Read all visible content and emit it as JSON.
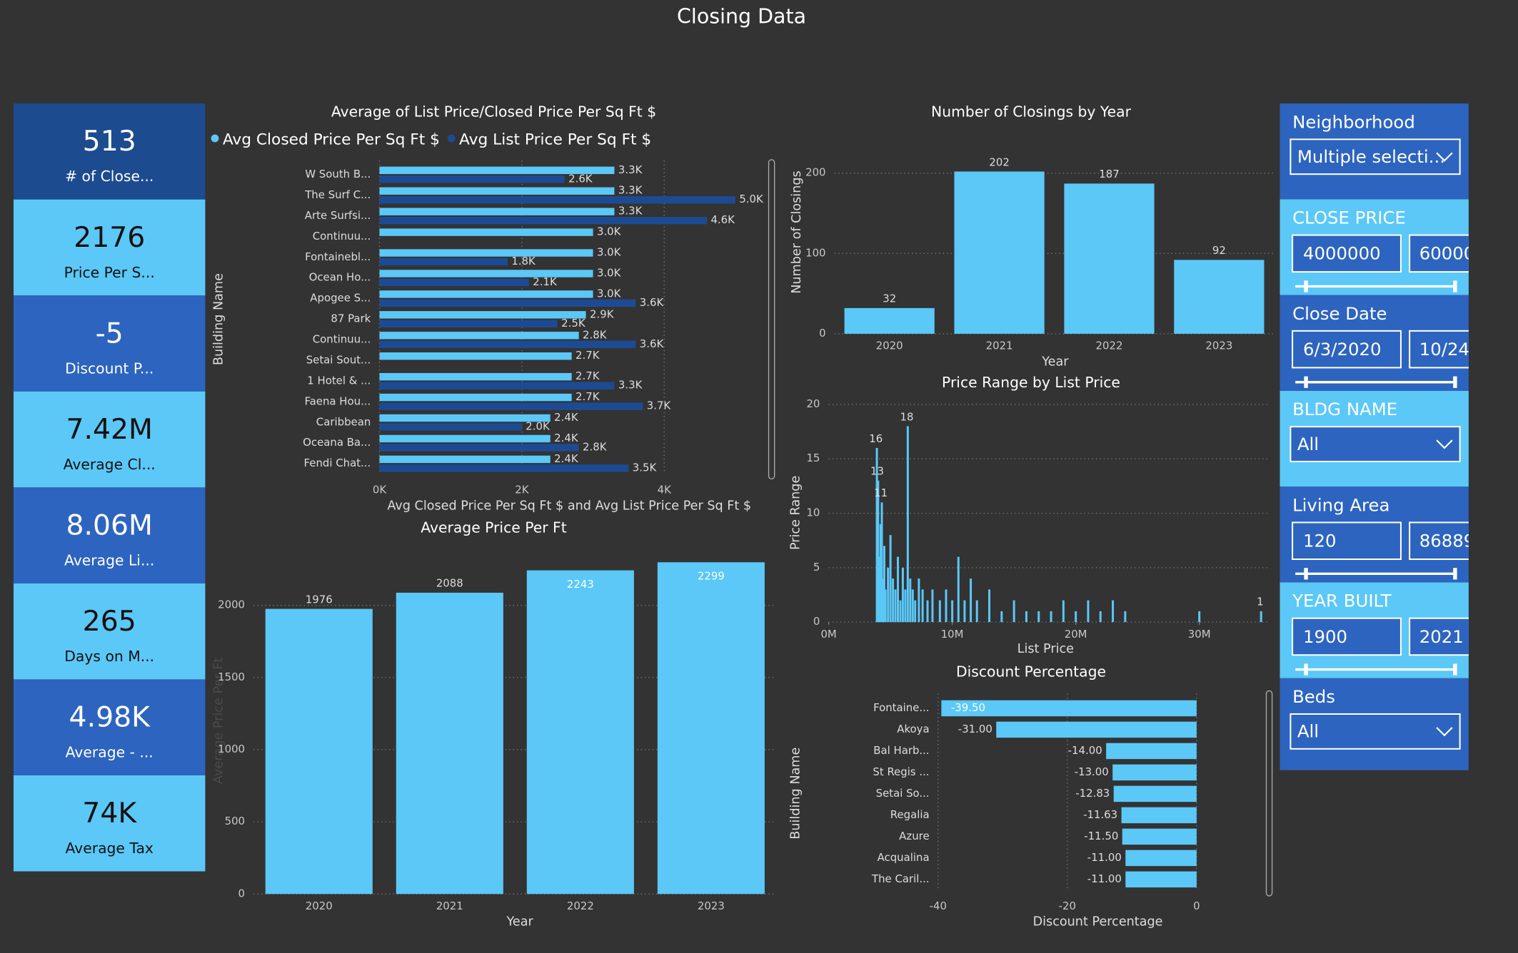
{
  "title": "Closing Data",
  "cards": [
    {
      "value": "513",
      "label": "# of Close..."
    },
    {
      "value": "2176",
      "label": "Price Per S..."
    },
    {
      "value": "-5",
      "label": "Discount P..."
    },
    {
      "value": "7.42M",
      "label": "Average Cl..."
    },
    {
      "value": "8.06M",
      "label": "Average Li..."
    },
    {
      "value": "265",
      "label": "Days on M..."
    },
    {
      "value": "4.98K",
      "label": "Average - ..."
    },
    {
      "value": "74K",
      "label": "Average Tax"
    }
  ],
  "slicers": [
    {
      "title": "Neighborhood",
      "value": "Multiple selecti..."
    },
    {
      "title": "CLOSE PRICE",
      "min": "4000000",
      "max": "60000"
    },
    {
      "title": "Close Date",
      "min": "6/3/2020",
      "max": "10/24"
    },
    {
      "title": "BLDG NAME",
      "value": "All"
    },
    {
      "title": "Living Area",
      "min": "120",
      "max": "86889"
    },
    {
      "title": "YEAR BUILT",
      "min": "1900",
      "max": "2021"
    },
    {
      "title": "Beds",
      "value": "All"
    }
  ],
  "chart_data": [
    {
      "type": "barh",
      "title": "Average of List Price/Closed Price Per Sq Ft $",
      "x_label": "Avg Closed Price Per Sq Ft $ and Avg List Price Per Sq Ft $",
      "y_label": "Building Name",
      "categories": [
        "W South B...",
        "The Surf C...",
        "Arte Surfsi...",
        "Continuu...",
        "Fontainebl...",
        "Ocean Ho...",
        "Apogee S...",
        "87 Park",
        "Continuu...",
        "Setai Sout...",
        "1 Hotel & ...",
        "Faena Hou...",
        "Caribbean",
        "Oceana Ba...",
        "Fendi Chat..."
      ],
      "series": [
        {
          "name": "Avg Closed Price Per Sq Ft $",
          "color": "#5bc8f7",
          "values": [
            3300,
            3300,
            3300,
            3000,
            3000,
            3000,
            3000,
            2900,
            2800,
            2700,
            2700,
            2700,
            2400,
            2400,
            2400
          ],
          "value_labels": [
            "3.3K",
            "3.3K",
            "3.3K",
            "3.0K",
            "3.0K",
            "3.0K",
            "3.0K",
            "2.9K",
            "2.8K",
            "2.7K",
            "2.7K",
            "2.7K",
            "2.4K",
            "2.4K",
            "2.4K"
          ]
        },
        {
          "name": "Avg List Price Per Sq Ft $",
          "color": "#1d4b93",
          "values": [
            2600,
            5000,
            4600,
            null,
            1800,
            2100,
            3600,
            2500,
            3600,
            null,
            3300,
            3700,
            2000,
            2800,
            3500
          ],
          "value_labels": [
            "2.6K",
            "5.0K",
            "4.6K",
            null,
            "1.8K",
            "2.1K",
            "3.6K",
            "2.5K",
            "3.6K",
            null,
            "3.3K",
            "3.7K",
            "2.0K",
            "2.8K",
            "3.5K"
          ]
        }
      ],
      "xlim": [
        0,
        5400
      ],
      "xticks": [
        {
          "value": 0,
          "label": "0K"
        },
        {
          "value": 2000,
          "label": "2K"
        },
        {
          "value": 4000,
          "label": "4K"
        }
      ],
      "grid": true
    },
    {
      "type": "bar",
      "title": "Number of Closings by Year",
      "x_label": "Year",
      "y_label": "Number of Closings",
      "categories": [
        "2020",
        "2021",
        "2022",
        "2023"
      ],
      "values": [
        32,
        202,
        187,
        92
      ],
      "color": "#5bc8f7",
      "ylim": [
        0,
        215
      ],
      "yticks": [
        0,
        100,
        200
      ],
      "grid": true,
      "data_labels": true
    },
    {
      "type": "bar",
      "title": "Price Range by List Price",
      "x_label": "List Price",
      "y_label": "Price Range",
      "x": [
        3900000,
        4000000,
        4100000,
        4200000,
        4300000,
        4400000,
        4500000,
        4600000,
        4800000,
        5000000,
        5200000,
        5400000,
        5600000,
        5800000,
        6000000,
        6200000,
        6400000,
        6600000,
        6800000,
        7000000,
        7300000,
        7600000,
        8000000,
        8400000,
        9000000,
        9500000,
        10000000,
        10500000,
        11000000,
        11500000,
        12000000,
        13000000,
        14000000,
        15000000,
        16000000,
        17000000,
        18000000,
        19000000,
        20000000,
        21000000,
        22000000,
        23000000,
        24000000,
        30000000,
        35000000
      ],
      "values": [
        16,
        13,
        6,
        9,
        11,
        4,
        7,
        3,
        5,
        8,
        4,
        3,
        6,
        2,
        5,
        3,
        18,
        4,
        3,
        2,
        4,
        3,
        2,
        3,
        2,
        3,
        2,
        6,
        2,
        4,
        2,
        3,
        1,
        2,
        1,
        1,
        1,
        2,
        1,
        2,
        1,
        2,
        1,
        1,
        1
      ],
      "value_labels": [
        "16",
        "13",
        null,
        null,
        "11",
        null,
        null,
        null,
        null,
        null,
        null,
        null,
        null,
        null,
        null,
        null,
        "18",
        null,
        null,
        null,
        null,
        null,
        null,
        null,
        null,
        null,
        null,
        null,
        null,
        null,
        null,
        null,
        null,
        null,
        null,
        null,
        null,
        null,
        null,
        null,
        null,
        null,
        null,
        null,
        "1"
      ],
      "color": "#5bc8f7",
      "xlim": [
        0,
        35500000
      ],
      "xticks": [
        {
          "value": 0,
          "label": "0M"
        },
        {
          "value": 10000000,
          "label": "10M"
        },
        {
          "value": 20000000,
          "label": "20M"
        },
        {
          "value": 30000000,
          "label": "30M"
        }
      ],
      "ylim": [
        0,
        20
      ],
      "yticks": [
        0,
        5,
        10,
        15,
        20
      ],
      "grid": true
    },
    {
      "type": "barh",
      "title": "Discount Percentage",
      "x_label": "Discount Percentage",
      "y_label": "Building Name",
      "categories": [
        "Fontaine...",
        "Akoya",
        "Bal Harb...",
        "St Regis ...",
        "Setai So...",
        "Regalia",
        "Azure",
        "Acqualina",
        "The Caril..."
      ],
      "values": [
        -39.5,
        -31,
        -14,
        -13,
        -12.83,
        -11.63,
        -11.5,
        -11,
        -11
      ],
      "value_labels": [
        "-39.50",
        "-31.00",
        "-14.00",
        "-13.00",
        "-12.83",
        "-11.63",
        "-11.50",
        "-11.00",
        "-11.00"
      ],
      "color": "#5bc8f7",
      "xlim": [
        -40,
        0
      ],
      "xticks": [
        -40,
        -20,
        0
      ],
      "grid": true
    },
    {
      "type": "bar",
      "title": "Average Price Per Ft",
      "x_label": "Year",
      "y_label": "Average Price Per Ft",
      "categories": [
        "2020",
        "2021",
        "2022",
        "2023"
      ],
      "values": [
        1976,
        2088,
        2243,
        2299
      ],
      "color": "#5bc8f7",
      "ylim": [
        0,
        2300
      ],
      "yticks": [
        0,
        500,
        1000,
        1500,
        2000
      ],
      "grid": true,
      "data_labels": true
    }
  ]
}
